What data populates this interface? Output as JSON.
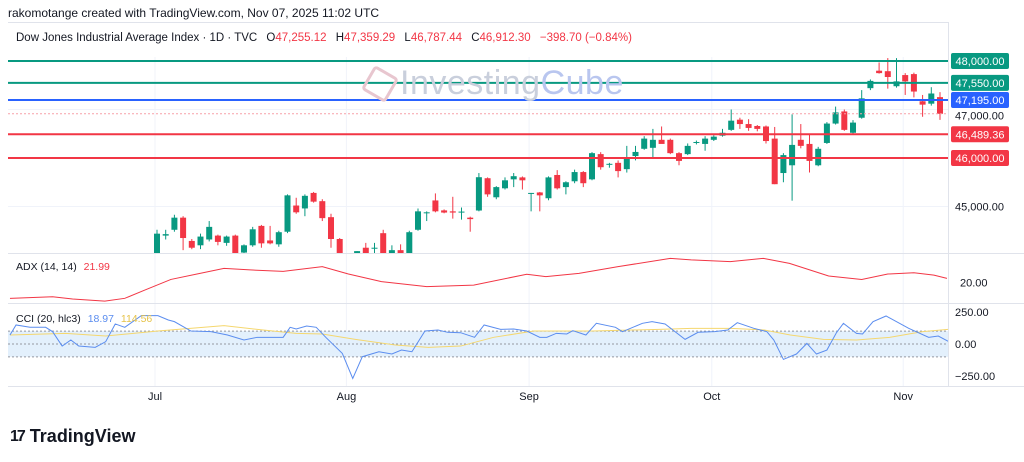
{
  "header": {
    "credit": "rakomotange created with TradingView.com, Nov 07, 2025 11:02 UTC",
    "symbol": "Dow Jones Industrial Average Index · 1D · TVC",
    "open_label": "O",
    "open": "47,255.12",
    "high_label": "H",
    "high": "47,359.29",
    "low_label": "L",
    "low": "46,787.44",
    "close_label": "C",
    "close": "46,912.30",
    "change": "−398.70 (−0.84%)"
  },
  "watermark": {
    "part1": "Investing",
    "part2": "Cube"
  },
  "footer": {
    "logo_text": "TradingView",
    "logo_mark": "17"
  },
  "colors": {
    "up": "#089981",
    "down": "#f23645",
    "blue_level": "#2962ff",
    "adx": "#f23645",
    "cci": "#5b8def",
    "cci_ma": "#f5d76e",
    "cci_band": "#e3f0fc"
  },
  "indicators": {
    "adx": {
      "label": "ADX (14, 14)",
      "value": "21.99"
    },
    "cci": {
      "label": "CCI (20, hlc3)",
      "value": "18.97",
      "ma_value": "114.56"
    }
  },
  "chart_data": [
    {
      "type": "candlestick",
      "title": "Dow Jones Industrial Average Index · 1D · TVC",
      "x_ticks": [
        "Jul",
        "Aug",
        "Sep",
        "Oct",
        "Nov"
      ],
      "x_tick_bars": [
        0,
        22,
        43,
        64,
        86
      ],
      "y_ticks": [
        "45,000.00",
        "47,000.00"
      ],
      "y_tick_values": [
        45000,
        47000
      ],
      "ylim": [
        44040,
        48300
      ],
      "grid": true,
      "levels": [
        {
          "value": 48000,
          "label": "48,000.00",
          "color": "#089981"
        },
        {
          "value": 47550,
          "label": "47,550.00",
          "color": "#089981"
        },
        {
          "value": 47195,
          "label": "47,195.00",
          "color": "#2962ff"
        },
        {
          "value": 46489.36,
          "label": "46,489.36",
          "color": "#f23645"
        },
        {
          "value": 46000,
          "label": "46,000.00",
          "color": "#f23645"
        }
      ],
      "last_close": 46912.3,
      "ohlc": [
        [
          44000,
          44520,
          43950,
          44440
        ],
        [
          44400,
          44520,
          44320,
          44430
        ],
        [
          44520,
          44830,
          44480,
          44770
        ],
        [
          44770,
          44800,
          44100,
          44350
        ],
        [
          44290,
          44330,
          44120,
          44150
        ],
        [
          44200,
          44440,
          44120,
          44380
        ],
        [
          44320,
          44700,
          44280,
          44580
        ],
        [
          44400,
          44420,
          44200,
          44270
        ],
        [
          44250,
          44400,
          44190,
          44380
        ],
        [
          44400,
          44420,
          43950,
          43950
        ],
        [
          44050,
          44220,
          44000,
          44200
        ],
        [
          44200,
          44580,
          44170,
          44530
        ],
        [
          44600,
          44620,
          44150,
          44240
        ],
        [
          44300,
          44600,
          44220,
          44240
        ],
        [
          44220,
          44500,
          44170,
          44470
        ],
        [
          44480,
          45250,
          44450,
          45230
        ],
        [
          45020,
          45180,
          44850,
          44880
        ],
        [
          44960,
          45250,
          44800,
          45220
        ],
        [
          45280,
          45300,
          45080,
          45100
        ],
        [
          45110,
          45150,
          44700,
          44760
        ],
        [
          44780,
          44850,
          44150,
          44330
        ],
        [
          44330,
          44350,
          43600,
          43600
        ],
        [
          43600,
          43950,
          43500,
          43900
        ],
        [
          43950,
          44080,
          43900,
          44080
        ],
        [
          44150,
          44250,
          43950,
          44000
        ],
        [
          44130,
          44250,
          44000,
          44150
        ],
        [
          44450,
          44520,
          43900,
          43900
        ],
        [
          43950,
          44200,
          43900,
          44100
        ],
        [
          44100,
          44220,
          43900,
          43950
        ],
        [
          43950,
          44500,
          43920,
          44470
        ],
        [
          44520,
          44960,
          44500,
          44900
        ],
        [
          44860,
          44900,
          44700,
          44880
        ],
        [
          45125,
          45270,
          44880,
          44900
        ],
        [
          44920,
          44940,
          44860,
          44875
        ],
        [
          44900,
          45200,
          44750,
          44875
        ],
        [
          44880,
          44980,
          44730,
          44895
        ],
        [
          44770,
          44790,
          44480,
          44740
        ],
        [
          44917,
          45690,
          44900,
          45604
        ],
        [
          45583,
          45600,
          45200,
          45250
        ],
        [
          45190,
          45420,
          45150,
          45400
        ],
        [
          45375,
          45600,
          45350,
          45540
        ],
        [
          45560,
          45690,
          45400,
          45625
        ],
        [
          45600,
          45620,
          45350,
          45540
        ],
        [
          45260,
          45280,
          44900,
          45280
        ],
        [
          45290,
          45300,
          44900,
          45230
        ],
        [
          45170,
          45620,
          45130,
          45600
        ],
        [
          45650,
          45750,
          45350,
          45375
        ],
        [
          45400,
          45520,
          45250,
          45500
        ],
        [
          45520,
          45760,
          45480,
          45710
        ],
        [
          45710,
          45730,
          45400,
          45480
        ],
        [
          45560,
          46120,
          45540,
          46100
        ],
        [
          46080,
          46120,
          45760,
          45810
        ],
        [
          45870,
          45900,
          45800,
          45880
        ],
        [
          45900,
          45950,
          45600,
          45730
        ],
        [
          45770,
          46250,
          45700,
          46000
        ],
        [
          46040,
          46250,
          45950,
          46125
        ],
        [
          46190,
          46450,
          46170,
          46400
        ],
        [
          46210,
          46600,
          46000,
          46375
        ],
        [
          46375,
          46650,
          46300,
          46290
        ],
        [
          46375,
          46400,
          46080,
          46100
        ],
        [
          46100,
          46120,
          45850,
          45940
        ],
        [
          46080,
          46300,
          46060,
          46250
        ],
        [
          46320,
          46360,
          46280,
          46330
        ],
        [
          46290,
          46450,
          46150,
          46400
        ],
        [
          46375,
          46470,
          46350,
          46440
        ],
        [
          46460,
          46600,
          46440,
          46520
        ],
        [
          46580,
          47000,
          46560,
          46770
        ],
        [
          46790,
          46830,
          46600,
          46700
        ],
        [
          46700,
          46800,
          46560,
          46620
        ],
        [
          46660,
          46680,
          46550,
          46600
        ],
        [
          46650,
          46670,
          46300,
          46350
        ],
        [
          46400,
          46640,
          45460,
          45460
        ],
        [
          45690,
          46100,
          45500,
          46060
        ],
        [
          45850,
          46900,
          45120,
          46270
        ],
        [
          46375,
          46700,
          46200,
          46250
        ],
        [
          46290,
          46500,
          45700,
          45940
        ],
        [
          45850,
          46230,
          45830,
          46190
        ],
        [
          46310,
          46740,
          46290,
          46710
        ],
        [
          46710,
          47060,
          46690,
          46940
        ],
        [
          46960,
          47000,
          46560,
          46580
        ],
        [
          46520,
          46780,
          46500,
          46730
        ],
        [
          46830,
          47400,
          46810,
          47230
        ],
        [
          47440,
          47620,
          47400,
          47590
        ],
        [
          47800,
          47970,
          47740,
          47750
        ],
        [
          47790,
          48060,
          47430,
          47670
        ],
        [
          47480,
          48060,
          47450,
          47580
        ],
        [
          47710,
          47750,
          47300,
          47580
        ],
        [
          47730,
          47760,
          47250,
          47370
        ],
        [
          47170,
          47300,
          46850,
          47100
        ],
        [
          47120,
          47460,
          47080,
          47330
        ],
        [
          47255,
          47359,
          46787,
          46912
        ]
      ]
    },
    {
      "type": "line",
      "name": "ADX (14, 14)",
      "y_ticks": [
        "20.00"
      ],
      "y_tick_values": [
        20
      ],
      "points": [
        [
          -16.9,
          12.8
        ],
        [
          -12,
          13.5
        ],
        [
          -9.7,
          12.5
        ],
        [
          -6,
          11.5
        ],
        [
          -3.7,
          12.8
        ],
        [
          -1.4,
          16.6
        ],
        [
          1.6,
          21.5
        ],
        [
          4.6,
          24.0
        ],
        [
          7.7,
          26.6
        ],
        [
          10.7,
          25.9
        ],
        [
          14.5,
          25.2
        ],
        [
          19,
          27.4
        ],
        [
          22,
          24.0
        ],
        [
          25.8,
          20.5
        ],
        [
          31,
          18.2
        ],
        [
          36.4,
          18.9
        ],
        [
          42.5,
          23.9
        ],
        [
          44.7,
          22.8
        ],
        [
          48.5,
          24.3
        ],
        [
          53,
          27.4
        ],
        [
          59,
          31.2
        ],
        [
          61.4,
          30.5
        ],
        [
          65.9,
          29.7
        ],
        [
          69.7,
          31.2
        ],
        [
          72.7,
          28.9
        ],
        [
          77.2,
          23.1
        ],
        [
          81,
          21.5
        ],
        [
          84,
          24.0
        ],
        [
          87,
          24.6
        ],
        [
          89.3,
          23.5
        ],
        [
          90.8,
          21.99
        ]
      ]
    },
    {
      "type": "line",
      "name": "CCI (20, hlc3)",
      "y_ticks": [
        "250.00",
        "0.00",
        "−250.00"
      ],
      "y_tick_values": [
        250,
        0,
        -250
      ],
      "band": [
        -100,
        100
      ],
      "cci": [
        [
          -16.9,
          70
        ],
        [
          -16.2,
          148
        ],
        [
          -14.6,
          130
        ],
        [
          -12.8,
          130
        ],
        [
          -12,
          96
        ],
        [
          -10.9,
          -16
        ],
        [
          -9.9,
          31
        ],
        [
          -9,
          -16
        ],
        [
          -7.1,
          -26
        ],
        [
          -5.9,
          18
        ],
        [
          -4.8,
          156
        ],
        [
          -3.7,
          130
        ],
        [
          -1.8,
          221
        ],
        [
          0.1,
          221
        ],
        [
          1.3,
          187
        ],
        [
          2,
          174
        ],
        [
          3.9,
          101
        ],
        [
          6.2,
          96
        ],
        [
          8.1,
          70
        ],
        [
          10,
          31
        ],
        [
          11.5,
          52
        ],
        [
          14.5,
          52
        ],
        [
          15.3,
          130
        ],
        [
          16,
          117
        ],
        [
          17.2,
          140
        ],
        [
          18.3,
          130
        ],
        [
          19.4,
          52
        ],
        [
          21.3,
          -73
        ],
        [
          22.5,
          -268
        ],
        [
          23.6,
          -99
        ],
        [
          25.5,
          -60
        ],
        [
          27,
          -78
        ],
        [
          28.1,
          -47
        ],
        [
          29.3,
          -60
        ],
        [
          30.8,
          101
        ],
        [
          32.3,
          109
        ],
        [
          33.4,
          91
        ],
        [
          34.9,
          88
        ],
        [
          36.5,
          52
        ],
        [
          37.6,
          148
        ],
        [
          39.5,
          114
        ],
        [
          41,
          117
        ],
        [
          42.5,
          101
        ],
        [
          44,
          52
        ],
        [
          44.8,
          52
        ],
        [
          45.9,
          83
        ],
        [
          47.1,
          78
        ],
        [
          47.8,
          104
        ],
        [
          49.3,
          70
        ],
        [
          50.5,
          161
        ],
        [
          52.7,
          130
        ],
        [
          53.5,
          96
        ],
        [
          55.8,
          161
        ],
        [
          56.9,
          174
        ],
        [
          58.4,
          156
        ],
        [
          60.7,
          36
        ],
        [
          62.2,
          91
        ],
        [
          64.1,
          96
        ],
        [
          65.6,
          109
        ],
        [
          66.7,
          166
        ],
        [
          68.6,
          122
        ],
        [
          70.1,
          96
        ],
        [
          70.9,
          31
        ],
        [
          72,
          -120
        ],
        [
          73.5,
          -78
        ],
        [
          74.7,
          5
        ],
        [
          75.8,
          -78
        ],
        [
          77,
          -47
        ],
        [
          78.1,
          88
        ],
        [
          78.9,
          161
        ],
        [
          80.4,
          83
        ],
        [
          81.1,
          78
        ],
        [
          82.3,
          174
        ],
        [
          83.8,
          218
        ],
        [
          86.4,
          122
        ],
        [
          88.7,
          52
        ],
        [
          89.8,
          62
        ],
        [
          91,
          18.97
        ]
      ],
      "cci_ma": [
        [
          -16.9,
          70
        ],
        [
          -10.5,
          83
        ],
        [
          -5.9,
          62
        ],
        [
          0.1,
          101
        ],
        [
          7.7,
          143
        ],
        [
          12.2,
          109
        ],
        [
          16,
          83
        ],
        [
          19,
          78
        ],
        [
          22.8,
          36
        ],
        [
          27.4,
          -8
        ],
        [
          31.2,
          -26
        ],
        [
          34.9,
          -16
        ],
        [
          38.7,
          52
        ],
        [
          43.3,
          101
        ],
        [
          50.1,
          101
        ],
        [
          57.7,
          114
        ],
        [
          61.4,
          122
        ],
        [
          66,
          122
        ],
        [
          69.8,
          109
        ],
        [
          72.8,
          70
        ],
        [
          76.6,
          36
        ],
        [
          80.4,
          31
        ],
        [
          84.2,
          52
        ],
        [
          88,
          96
        ],
        [
          91,
          114.56
        ]
      ]
    }
  ]
}
